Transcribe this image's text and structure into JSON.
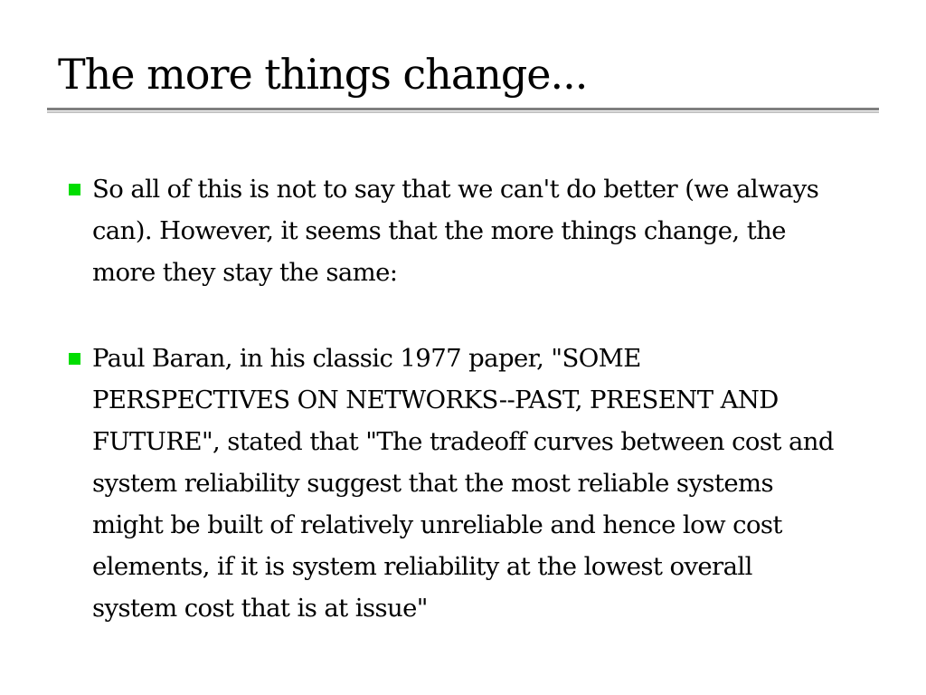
{
  "slide": {
    "title": "The more things change...",
    "bullets": [
      {
        "text": "So all of this is not to say that we can't do better (we always can). However, it seems that the more things change, the more they stay the same:"
      },
      {
        "text": "Paul Baran, in his classic 1977 paper, \"SOME PERSPECTIVES ON NETWORKS--PAST, PRESENT AND FUTURE\", stated that \"The tradeoff curves between cost and system reliability suggest that the most reliable systems might be built of relatively unreliable and hence low cost elements, if it is system reliability at the lowest overall system cost that is at issue\""
      }
    ]
  },
  "colors": {
    "bullet_marker": "#00dd00",
    "rule_dark": "#7f7f7f",
    "rule_light": "#c4c4c4",
    "text": "#000000",
    "background": "#ffffff"
  }
}
